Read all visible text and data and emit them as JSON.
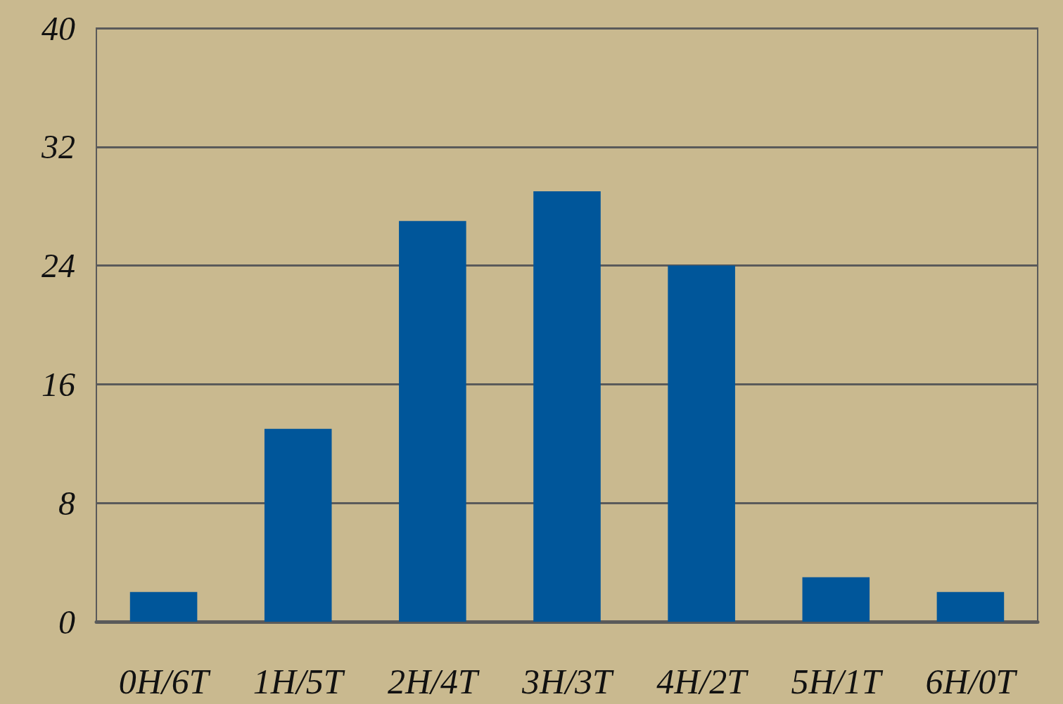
{
  "chart_data": {
    "type": "bar",
    "categories": [
      "0H/6T",
      "1H/5T",
      "2H/4T",
      "3H/3T",
      "4H/2T",
      "5H/1T",
      "6H/0T"
    ],
    "values": [
      2,
      13,
      27,
      29,
      24,
      3,
      2
    ],
    "color": "#00569a",
    "ylim": [
      0,
      40
    ],
    "yticks": [
      0,
      8,
      16,
      24,
      32,
      40
    ],
    "grid": "y"
  }
}
